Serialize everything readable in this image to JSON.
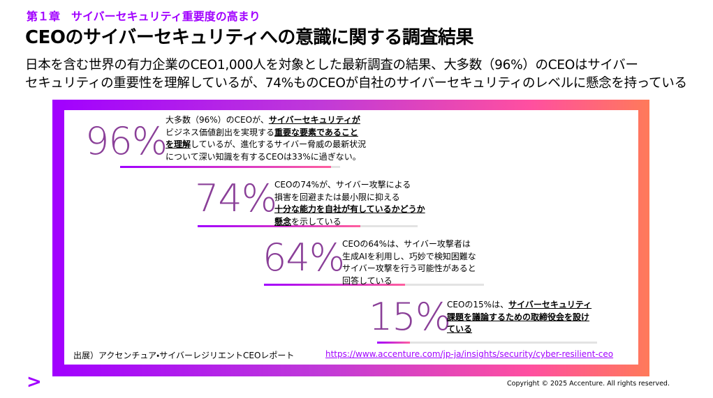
{
  "header": {
    "chapter": "第１章　サイバーセキュリティ重要度の高まり",
    "title": "CEOのサイバーセキュリティへの意識に関する調査結果",
    "subtitle_lines": [
      "日本を含む世界の有力企業のCEO1,000人を対象とした最新調査の結果、大多数（96%）のCEOはサイバー",
      "セキュリティの重要性を理解しているが、74%ものCEOが自社のサイバーセキュリティのレベルに懸念を持っている"
    ]
  },
  "bar_max": 100,
  "stats": [
    {
      "value": 96,
      "label": "96%",
      "lines": [
        [
          {
            "text": "大多数（96%）のCEOが、",
            "em": false
          },
          {
            "text": "サイバーセキュリティが",
            "em": true
          }
        ],
        [
          {
            "text": "ビジネス価値創出を実現する",
            "em": false
          },
          {
            "text": "重要な要素であること",
            "em": true
          }
        ],
        [
          {
            "text": "を理解",
            "em": true
          },
          {
            "text": "しているが、進化するサイバー脅威の最新状況",
            "em": false
          }
        ],
        [
          {
            "text": "について深い知識を有するCEOは33%に過ぎない。",
            "em": false
          }
        ]
      ]
    },
    {
      "value": 74,
      "label": "74%",
      "lines": [
        [
          {
            "text": "CEOの74%が、サイバー攻撃による",
            "em": false
          }
        ],
        [
          {
            "text": "損害を回避または最小限に抑える",
            "em": false
          }
        ],
        [
          {
            "text": "十分な能力を自社が有しているかどうか",
            "em": true
          }
        ],
        [
          {
            "text": "懸念",
            "em": true
          },
          {
            "text": "を示している",
            "em": false
          }
        ]
      ]
    },
    {
      "value": 64,
      "label": "64%",
      "lines": [
        [
          {
            "text": "CEOの64%は、サイバー攻撃者は",
            "em": false
          }
        ],
        [
          {
            "text": "生成AIを利用し、巧妙で検知困難な",
            "em": false
          }
        ],
        [
          {
            "text": "サイバー攻撃を行う可能性があると",
            "em": false
          }
        ],
        [
          {
            "text": "回答している",
            "em": false
          }
        ]
      ]
    },
    {
      "value": 15,
      "label": "15%",
      "lines": [
        [
          {
            "text": "CEOの15%は、",
            "em": false
          },
          {
            "text": "サイバーセキュリティ",
            "em": true
          }
        ],
        [
          {
            "text": "課題を議論するための取締役会を設け",
            "em": true
          }
        ],
        [
          {
            "text": "ている",
            "em": true
          }
        ]
      ]
    }
  ],
  "source": {
    "label": "出展）アクセンチュア・サイバーレジリエントCEOレポート",
    "url": "https://www.accenture.com/jp-ja/insights/security/cyber-resilient-ceo"
  },
  "footer": {
    "logo": ">",
    "copyright": "Copyright © 2025 Accenture. All rights reserved."
  }
}
